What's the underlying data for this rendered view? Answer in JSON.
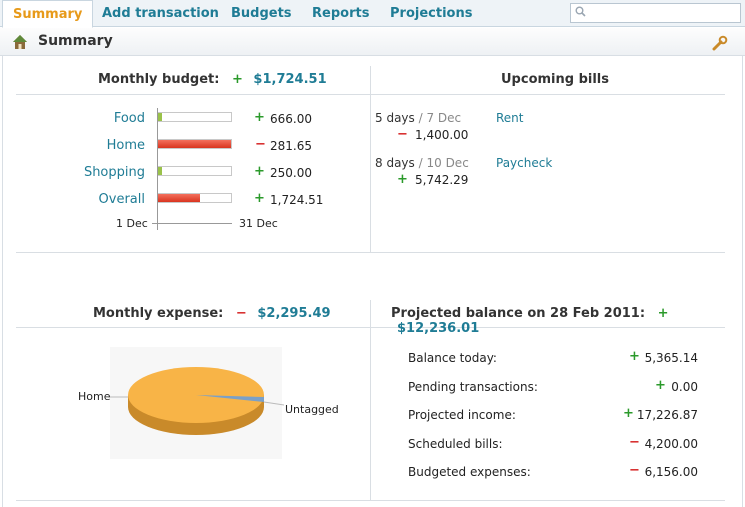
{
  "tabs": [
    {
      "label": "Summary",
      "active": true
    },
    {
      "label": "Add transaction"
    },
    {
      "label": "Budgets"
    },
    {
      "label": "Reports"
    },
    {
      "label": "Projections"
    }
  ],
  "search": {
    "placeholder": ""
  },
  "header": {
    "title": "Summary"
  },
  "monthly_budget": {
    "label": "Monthly budget:",
    "sign": "+",
    "amount": "$1,724.51",
    "rows": [
      {
        "name": "Food",
        "sign": "+",
        "value": "666.00",
        "type": "green",
        "fill": 0.06
      },
      {
        "name": "Home",
        "sign": "−",
        "value": "281.65",
        "type": "red",
        "fill": 1.0
      },
      {
        "name": "Shopping",
        "sign": "+",
        "value": "250.00",
        "type": "green",
        "fill": 0.06
      },
      {
        "name": "Overall",
        "sign": "+",
        "value": "1,724.51",
        "type": "red",
        "fill": 0.58
      }
    ],
    "axis_start": "1 Dec",
    "axis_end": "31 Dec"
  },
  "upcoming_bills": {
    "title": "Upcoming bills",
    "items": [
      {
        "days": "5 days",
        "date": "7 Dec",
        "sign": "−",
        "amount": "1,400.00",
        "name": "Rent"
      },
      {
        "days": "8 days",
        "date": "10 Dec",
        "sign": "+",
        "amount": "5,742.29",
        "name": "Paycheck"
      }
    ]
  },
  "monthly_expense": {
    "label": "Monthly expense:",
    "sign": "−",
    "amount": "$2,295.49",
    "pie": {
      "labels": [
        "Home",
        "Untagged"
      ],
      "values": [
        98.5,
        1.5
      ]
    }
  },
  "projected": {
    "label": "Projected balance on 28 Feb 2011:",
    "sign": "+",
    "amount": "$12,236.01",
    "rows": [
      {
        "label": "Balance today:",
        "sign": "+",
        "value": "5,365.14"
      },
      {
        "label": "Pending transactions:",
        "sign": "+",
        "value": "0.00"
      },
      {
        "label": "Projected income:",
        "sign": "+",
        "value": "17,226.87"
      },
      {
        "label": "Scheduled bills:",
        "sign": "−",
        "value": "4,200.00"
      },
      {
        "label": "Budgeted expenses:",
        "sign": "−",
        "value": "6,156.00"
      }
    ]
  },
  "colors": {
    "accent": "#1f7c95",
    "active_tab": "#e79a1a",
    "plus": "#2b9a2b",
    "minus": "#d62525",
    "pie_main": "#f8b447"
  }
}
